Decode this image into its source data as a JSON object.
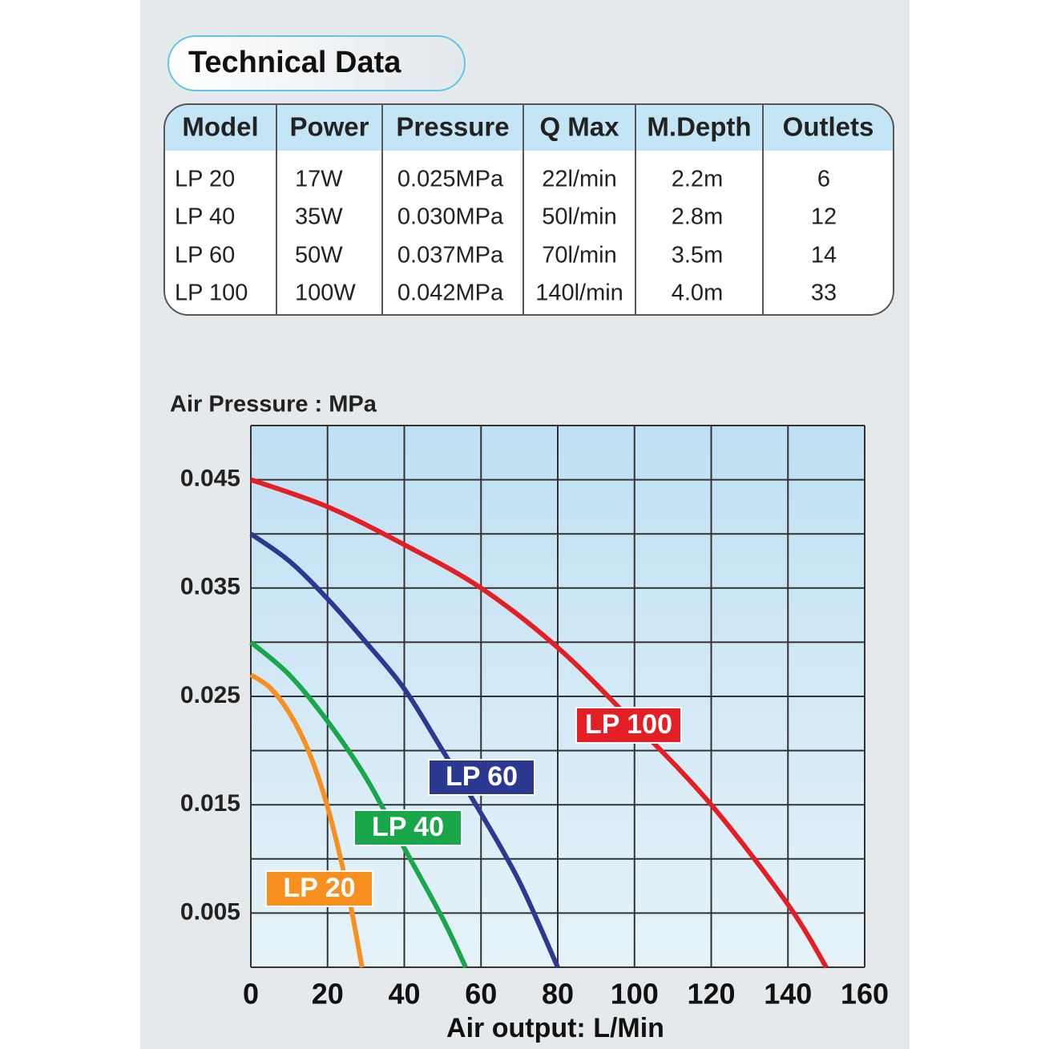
{
  "header": {
    "title": "Technical Data"
  },
  "table": {
    "columns": [
      "Model",
      "Power",
      "Pressure",
      "Q  Max",
      "M.Depth",
      "Outlets"
    ],
    "rows": [
      [
        "LP 20",
        "17W",
        "0.025MPa",
        "22l/min",
        "2.2m",
        "6"
      ],
      [
        "LP 40",
        "35W",
        "0.030MPa",
        "50l/min",
        "2.8m",
        "12"
      ],
      [
        "LP 60",
        "50W",
        "0.037MPa",
        "70l/min",
        "3.5m",
        "14"
      ],
      [
        "LP 100",
        "100W",
        "0.042MPa",
        "140l/min",
        "4.0m",
        "33"
      ]
    ]
  },
  "chart_data": {
    "type": "line",
    "y_label": "Air Pressure : MPa",
    "x_label": "Air output: L/Min",
    "xlim": [
      0,
      160
    ],
    "xticks": [
      0,
      20,
      40,
      60,
      80,
      100,
      120,
      140,
      160
    ],
    "ylim": [
      0,
      0.05
    ],
    "yticks": [
      0.005,
      0.015,
      0.025,
      0.035,
      0.045
    ],
    "ygrid": [
      0,
      0.01,
      0.02,
      0.03,
      0.04,
      0.05
    ],
    "grid": true,
    "series": [
      {
        "name": "LP 20",
        "color": "#f7901e",
        "x": [
          0,
          5,
          10,
          15,
          20,
          25,
          29
        ],
        "y": [
          0.027,
          0.0258,
          0.0235,
          0.02,
          0.0148,
          0.0075,
          0
        ]
      },
      {
        "name": "LP 40",
        "color": "#1aa64b",
        "x": [
          0,
          10,
          20,
          30,
          40,
          50,
          56
        ],
        "y": [
          0.03,
          0.027,
          0.0227,
          0.0175,
          0.011,
          0.0045,
          0
        ]
      },
      {
        "name": "LP 60",
        "color": "#2b3990",
        "x": [
          0,
          10,
          20,
          30,
          40,
          50,
          60,
          70,
          80
        ],
        "y": [
          0.04,
          0.0375,
          0.034,
          0.03,
          0.0257,
          0.02,
          0.0142,
          0.0079,
          0
        ]
      },
      {
        "name": "LP 100",
        "color": "#e31e24",
        "x": [
          0,
          20,
          40,
          60,
          80,
          100,
          120,
          140,
          150
        ],
        "y": [
          0.045,
          0.0425,
          0.039,
          0.035,
          0.0295,
          0.0225,
          0.015,
          0.0058,
          0
        ]
      }
    ]
  }
}
